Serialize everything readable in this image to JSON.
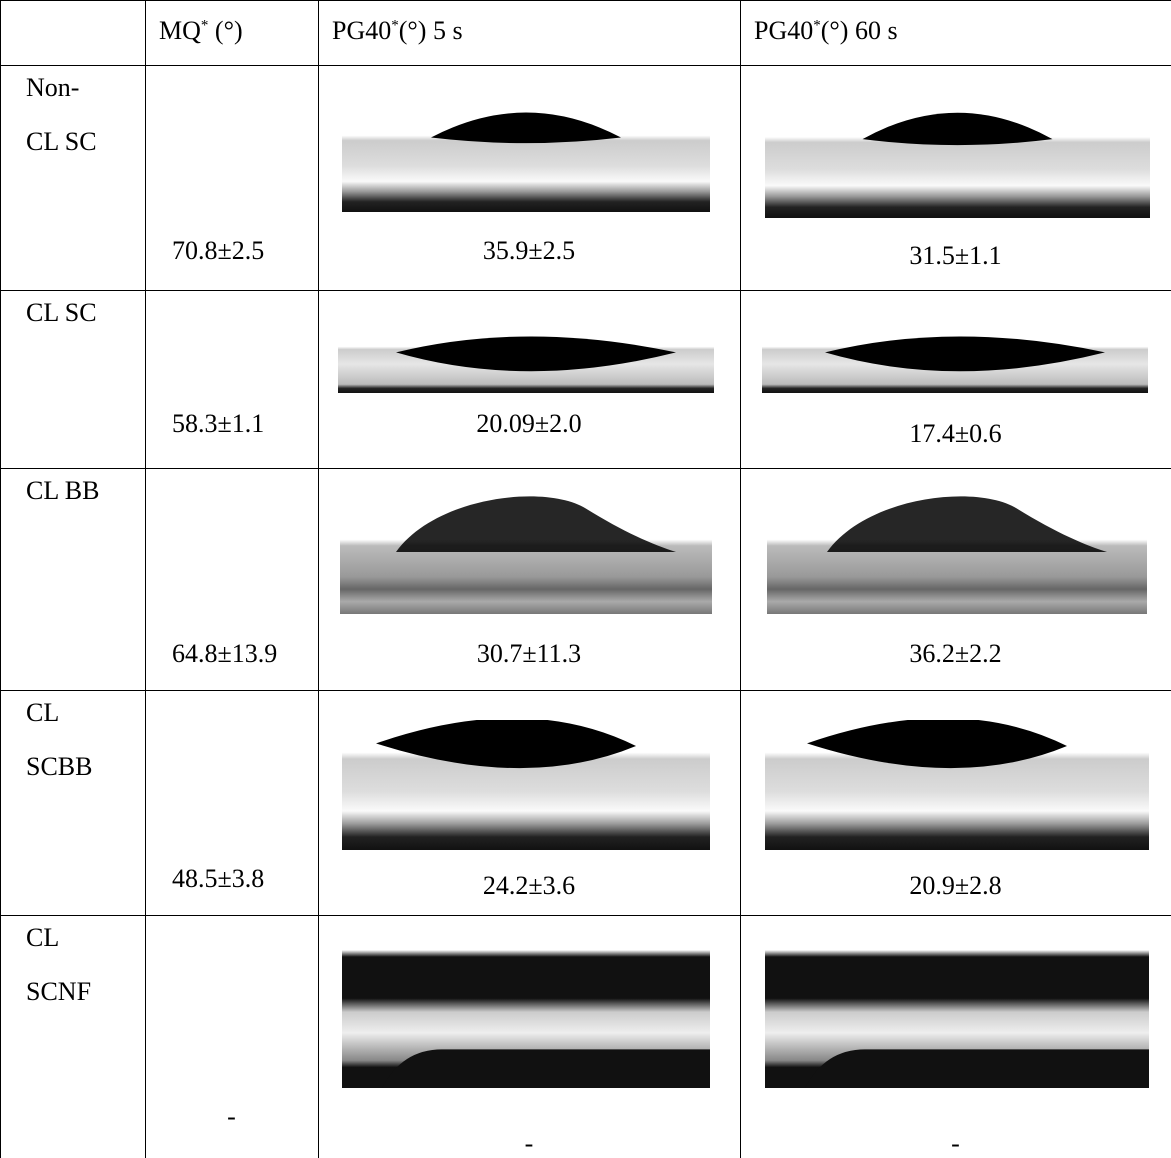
{
  "table": {
    "header": [
      [],
      [
        "MQ",
        "*",
        " (°)"
      ],
      [
        "PG40",
        "*",
        "(°) 5 s"
      ],
      [
        "PG40",
        "*",
        "(°) 60 s"
      ]
    ],
    "rows": [
      {
        "label": [
          "Non-",
          "CL SC"
        ],
        "mq": "70.8±2.5",
        "pg5": "35.9±2.5",
        "pg60": "31.5±1.1"
      },
      {
        "label": [
          "CL SC"
        ],
        "mq": "58.3±1.1",
        "pg5": "20.09±2.0",
        "pg60": "17.4±0.6"
      },
      {
        "label": [
          "CL BB"
        ],
        "mq": "64.8±13.9",
        "pg5": "30.7±11.3",
        "pg60": "36.2±2.2"
      },
      {
        "label": [
          "CL",
          "SCBB"
        ],
        "mq": "48.5±3.8",
        "pg5": "24.2±3.6",
        "pg60": "20.9±2.8"
      },
      {
        "label": [
          "CL",
          "SCNF"
        ],
        "mq": "-",
        "pg5": "-",
        "pg60": "-"
      }
    ]
  }
}
